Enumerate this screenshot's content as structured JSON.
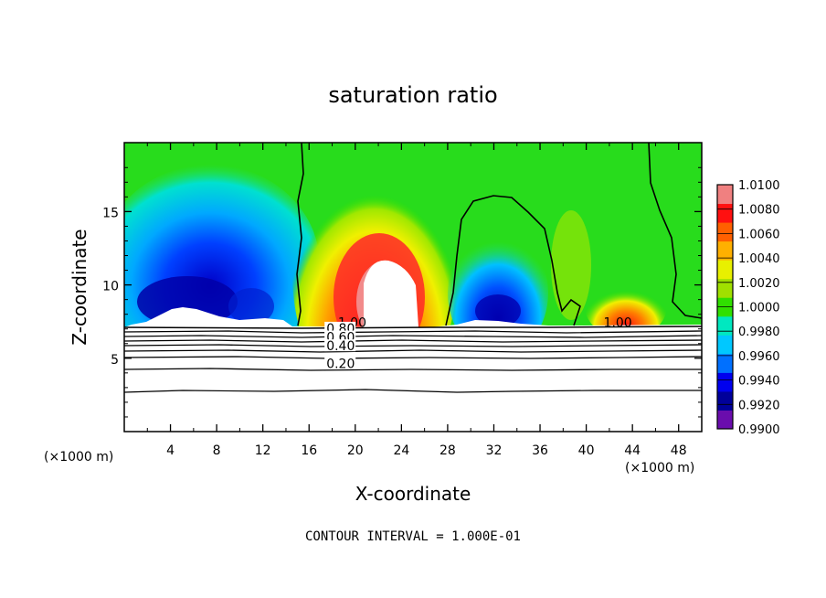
{
  "chart_data": {
    "type": "heatmap",
    "title": "saturation ratio",
    "xlabel": "X-coordinate",
    "ylabel": "Z-coordinate",
    "x_unit_left": "(×1000 m)",
    "x_unit_right": "(×1000 m)",
    "xlim": [
      0,
      50
    ],
    "ylim": [
      0,
      19.7
    ],
    "x_ticks": [
      4,
      8,
      12,
      16,
      20,
      24,
      28,
      32,
      36,
      40,
      44,
      48
    ],
    "y_ticks": [
      5,
      10,
      15
    ],
    "colorbar": {
      "levels": [
        0.99,
        0.992,
        0.994,
        0.996,
        0.998,
        1.0,
        1.002,
        1.004,
        1.006,
        1.008,
        1.01
      ],
      "labels": [
        "0.9900",
        "0.9920",
        "0.9940",
        "0.9960",
        "0.9980",
        "1.0000",
        "1.0020",
        "1.0040",
        "1.0060",
        "1.0080",
        "1.0100"
      ],
      "colors": [
        "#6a0dad",
        "#00009a",
        "#0000ee",
        "#0070ff",
        "#00c8ff",
        "#00e8c0",
        "#30e000",
        "#a0e000",
        "#e8f000",
        "#ffb000",
        "#ff6000",
        "#ff1010",
        "#f08080"
      ]
    },
    "contour_labels": [
      {
        "text": "1.00",
        "x": 18.5,
        "y": 7.2
      },
      {
        "text": "1.00",
        "x": 41.5,
        "y": 7.2
      },
      {
        "text": "0.80",
        "x": 17.5,
        "y": 6.8
      },
      {
        "text": "0.60",
        "x": 17.5,
        "y": 6.2
      },
      {
        "text": "0.40",
        "x": 17.5,
        "y": 5.6
      },
      {
        "text": "0.20",
        "x": 17.5,
        "y": 4.4
      }
    ],
    "footer": "CONTOUR INTERVAL = 1.000E-01"
  }
}
